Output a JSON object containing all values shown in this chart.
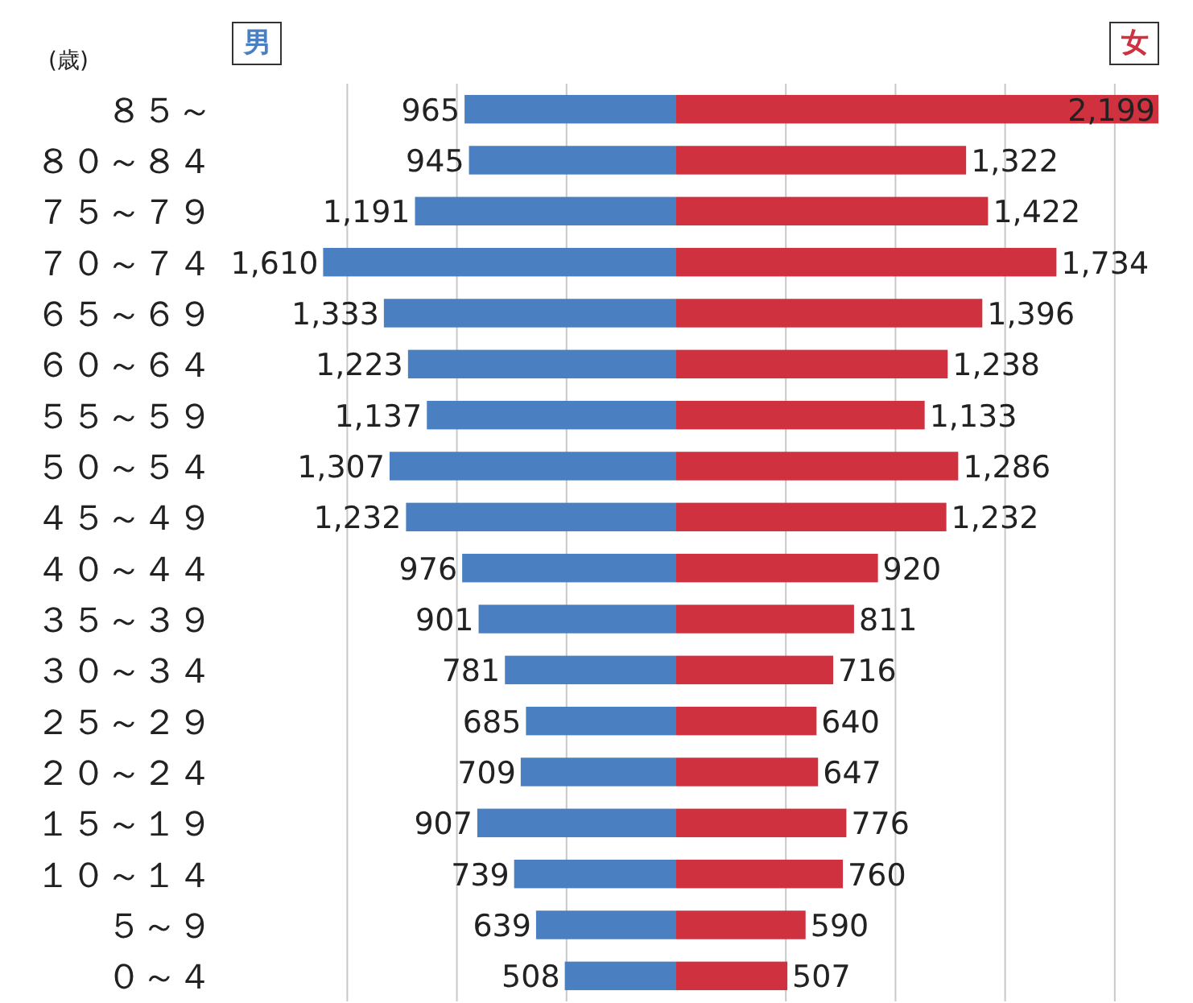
{
  "chart_data": [
    {
      "type": "bar",
      "orientation": "horizontal",
      "ylabel": "(歳)",
      "grid": "x",
      "categories": [
        "８５～",
        "８０～８４",
        "７５～７９",
        "７０～７４",
        "６５～６９",
        "６０～６４",
        "５５～５９",
        "５０～５４",
        "４５～４９",
        "４０～４４",
        "３５～３９",
        "３０～３４",
        "２５～２９",
        "２０～２４",
        "１５～１９",
        "１０～１４",
        "５～９",
        "０～４"
      ],
      "xticks": [
        {
          "value": 500,
          "label": null
        },
        {
          "value": 1000,
          "label": null
        },
        {
          "value": 1500,
          "label": null
        }
      ],
      "series": [
        {
          "name": "男",
          "color": "#4a7fc1",
          "values": [
            965,
            945,
            1191,
            1610,
            1333,
            1223,
            1137,
            1307,
            1232,
            976,
            901,
            781,
            685,
            709,
            907,
            739,
            639,
            508
          ],
          "value_labels": [
            "965",
            "945",
            "1,191",
            "1,610",
            "1,333",
            "1,223",
            "1,137",
            "1,307",
            "1,232",
            "976",
            "901",
            "781",
            "685",
            "709",
            "907",
            "739",
            "639",
            "508"
          ]
        }
      ]
    },
    {
      "type": "bar",
      "orientation": "horizontal",
      "grid": "x",
      "tick_labels": false,
      "categories": [
        "８５～",
        "８０～８４",
        "７５～７９",
        "７０～７４",
        "６５～６９",
        "６０～６４",
        "５５～５９",
        "５０～５４",
        "４５～４９",
        "４０～４４",
        "３５～３９",
        "３０～３４",
        "２５～２９",
        "２０～２４",
        "１５～１９",
        "１０～１４",
        "５～９",
        "０～４"
      ],
      "xticks": [
        {
          "value": 500,
          "label": null
        },
        {
          "value": 1000,
          "label": null
        },
        {
          "value": 1500,
          "label": null
        },
        {
          "value": 2000,
          "label": null
        }
      ],
      "series": [
        {
          "name": "女",
          "color": "#d0313f",
          "values": [
            2199,
            1322,
            1422,
            1734,
            1396,
            1238,
            1133,
            1286,
            1232,
            920,
            811,
            716,
            640,
            647,
            776,
            760,
            590,
            507
          ],
          "value_labels": [
            "2,199",
            "1,322",
            "1,422",
            "1,734",
            "1,396",
            "1,238",
            "1,133",
            "1,286",
            "1,232",
            "920",
            "811",
            "716",
            "640",
            "647",
            "776",
            "760",
            "590",
            "507"
          ]
        }
      ]
    }
  ]
}
